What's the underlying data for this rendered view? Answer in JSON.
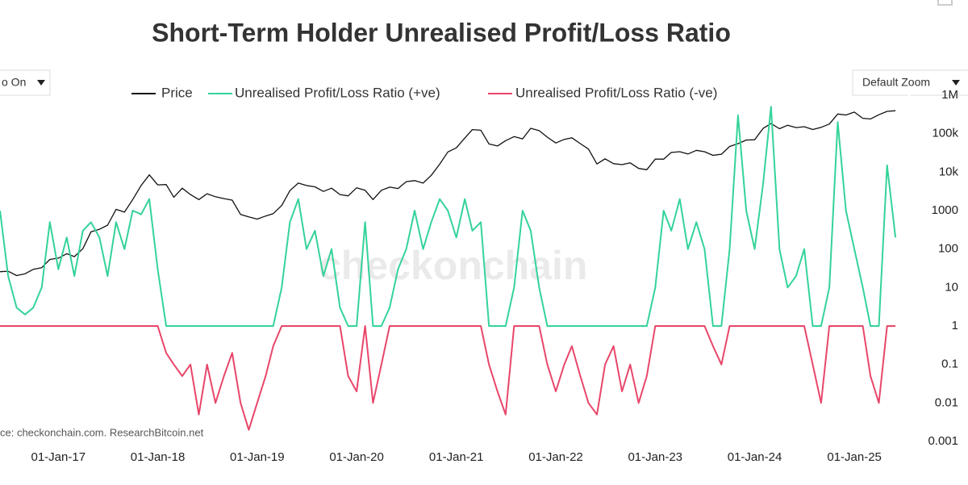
{
  "chart_data": {
    "type": "line",
    "title": "Short-Term Holder Unrealised Profit/Loss Ratio",
    "source": "ce: checkonchain.com. ResearchBitcoin.net",
    "watermark": "checkonchain",
    "controls": {
      "left": "o On",
      "right": "Default Zoom"
    },
    "ylog": true,
    "y2log": true,
    "ylim": [
      0.001,
      1000000
    ],
    "yticks": [
      0.001,
      0.01,
      0.1,
      1,
      10,
      100,
      1000,
      {
        "value": 10000,
        "label": "10k"
      },
      {
        "value": 100000,
        "label": "100k"
      },
      {
        "value": 1000000,
        "label": "1M"
      }
    ],
    "y2lim": [
      3,
      175000
    ],
    "xlim": [
      "2016-06-01",
      "2025-07-15"
    ],
    "xticks": [
      {
        "value": "2017-01-01",
        "label": "01-Jan-17"
      },
      {
        "value": "2018-01-01",
        "label": "01-Jan-18"
      },
      {
        "value": "2019-01-01",
        "label": "01-Jan-19"
      },
      {
        "value": "2020-01-01",
        "label": "01-Jan-20"
      },
      {
        "value": "2021-01-01",
        "label": "01-Jan-21"
      },
      {
        "value": "2022-01-01",
        "label": "01-Jan-22"
      },
      {
        "value": "2023-01-01",
        "label": "01-Jan-23"
      },
      {
        "value": "2024-01-01",
        "label": "01-Jan-24"
      },
      {
        "value": "2025-01-01",
        "label": "01-Jan-25"
      }
    ],
    "x": [
      "2016-06-01",
      "2016-07-01",
      "2016-08-01",
      "2016-09-01",
      "2016-10-01",
      "2016-11-01",
      "2016-12-01",
      "2017-01-01",
      "2017-02-01",
      "2017-03-01",
      "2017-04-01",
      "2017-05-01",
      "2017-06-01",
      "2017-07-01",
      "2017-08-01",
      "2017-09-01",
      "2017-10-01",
      "2017-11-01",
      "2017-12-01",
      "2018-01-01",
      "2018-02-01",
      "2018-03-01",
      "2018-04-01",
      "2018-05-01",
      "2018-06-01",
      "2018-07-01",
      "2018-08-01",
      "2018-09-01",
      "2018-10-01",
      "2018-11-01",
      "2018-12-01",
      "2019-01-01",
      "2019-02-01",
      "2019-03-01",
      "2019-04-01",
      "2019-05-01",
      "2019-06-01",
      "2019-07-01",
      "2019-08-01",
      "2019-09-01",
      "2019-10-01",
      "2019-11-01",
      "2019-12-01",
      "2020-01-01",
      "2020-02-01",
      "2020-03-01",
      "2020-04-01",
      "2020-05-01",
      "2020-06-01",
      "2020-07-01",
      "2020-08-01",
      "2020-09-01",
      "2020-10-01",
      "2020-11-01",
      "2020-12-01",
      "2021-01-01",
      "2021-02-01",
      "2021-03-01",
      "2021-04-01",
      "2021-05-01",
      "2021-06-01",
      "2021-07-01",
      "2021-08-01",
      "2021-09-01",
      "2021-10-01",
      "2021-11-01",
      "2021-12-01",
      "2022-01-01",
      "2022-02-01",
      "2022-03-01",
      "2022-04-01",
      "2022-05-01",
      "2022-06-01",
      "2022-07-01",
      "2022-08-01",
      "2022-09-01",
      "2022-10-01",
      "2022-11-01",
      "2022-12-01",
      "2023-01-01",
      "2023-02-01",
      "2023-03-01",
      "2023-04-01",
      "2023-05-01",
      "2023-06-01",
      "2023-07-01",
      "2023-08-01",
      "2023-09-01",
      "2023-10-01",
      "2023-11-01",
      "2023-12-01",
      "2024-01-01",
      "2024-02-01",
      "2024-03-01",
      "2024-04-01",
      "2024-05-01",
      "2024-06-01",
      "2024-07-01",
      "2024-08-01",
      "2024-09-01",
      "2024-10-01",
      "2024-11-01",
      "2024-12-01",
      "2025-01-01",
      "2025-02-01",
      "2025-03-01",
      "2025-04-01",
      "2025-05-01",
      "2025-06-01"
    ],
    "series": [
      {
        "name": "Price",
        "color": "#111111",
        "axis": "y2",
        "values": [
          650,
          660,
          575,
          610,
          700,
          740,
          960,
          1000,
          1150,
          1050,
          1350,
          2300,
          2500,
          2850,
          4700,
          4300,
          6400,
          10000,
          14000,
          10200,
          10300,
          6900,
          9200,
          7500,
          6400,
          7700,
          7000,
          6600,
          6300,
          4000,
          3700,
          3450,
          3800,
          4100,
          5300,
          8500,
          10800,
          10000,
          9600,
          8300,
          9200,
          7500,
          7200,
          9300,
          8600,
          6400,
          8600,
          9500,
          9100,
          11300,
          11700,
          10800,
          13800,
          19700,
          29000,
          33000,
          45000,
          58800,
          57700,
          37300,
          35000,
          41500,
          47100,
          43800,
          61300,
          57000,
          46300,
          38500,
          43200,
          45500,
          37700,
          31800,
          19800,
          23300,
          20000,
          19400,
          20500,
          17200,
          16500,
          23100,
          23100,
          28500,
          29200,
          27200,
          30500,
          29200,
          26000,
          27000,
          34500,
          37700,
          42300,
          42600,
          61200,
          71300,
          60600,
          67500,
          62700,
          64600,
          59000,
          63300,
          70200,
          96400,
          93400,
          102400,
          84300,
          82500,
          94200,
          105000,
          107000
        ]
      },
      {
        "name": "Unrealised Profit/Loss Ratio (+ve)",
        "color": "#34d399",
        "values": [
          1000,
          20,
          3,
          2,
          3,
          10,
          500,
          30,
          200,
          20,
          300,
          500,
          200,
          20,
          500,
          100,
          1000,
          800,
          2000,
          30,
          1,
          1,
          1,
          1,
          1,
          1,
          1,
          1,
          1,
          1,
          1,
          1,
          1,
          1,
          10,
          500,
          2000,
          100,
          300,
          20,
          100,
          3,
          1,
          1,
          500,
          1,
          1,
          3,
          30,
          100,
          1000,
          100,
          500,
          2000,
          1000,
          200,
          2000,
          300,
          500,
          1,
          1,
          1,
          10,
          1000,
          300,
          10,
          1,
          1,
          1,
          1,
          1,
          1,
          1,
          1,
          1,
          1,
          1,
          1,
          1,
          10,
          1000,
          300,
          2000,
          100,
          500,
          100,
          1,
          1,
          100,
          300000,
          1000,
          100,
          5000,
          500000,
          100,
          10,
          20,
          100,
          1,
          1,
          10,
          200000,
          1000,
          100,
          10,
          1,
          1,
          15000,
          200
        ]
      },
      {
        "name": "Unrealised Profit/Loss Ratio (-ve)",
        "color": "#e8466a",
        "values": [
          1,
          1,
          1,
          1,
          1,
          1,
          1,
          1,
          1,
          1,
          1,
          1,
          1,
          1,
          1,
          1,
          1,
          1,
          1,
          1,
          0.2,
          0.1,
          0.05,
          0.1,
          0.005,
          0.1,
          0.01,
          0.05,
          0.2,
          0.01,
          0.002,
          0.01,
          0.05,
          0.3,
          1,
          1,
          1,
          1,
          1,
          1,
          1,
          1,
          0.05,
          0.02,
          1,
          0.01,
          0.1,
          1,
          1,
          1,
          1,
          1,
          1,
          1,
          1,
          1,
          1,
          1,
          1,
          0.1,
          0.02,
          0.005,
          1,
          1,
          1,
          1,
          0.1,
          0.02,
          0.1,
          0.3,
          0.05,
          0.01,
          0.005,
          0.1,
          0.3,
          0.02,
          0.1,
          0.01,
          0.05,
          1,
          1,
          1,
          1,
          1,
          1,
          1,
          0.3,
          0.1,
          1,
          1,
          1,
          1,
          1,
          1,
          1,
          1,
          1,
          1,
          0.1,
          0.01,
          1,
          1,
          1,
          1,
          1,
          0.05,
          0.01,
          1,
          1
        ]
      }
    ]
  }
}
